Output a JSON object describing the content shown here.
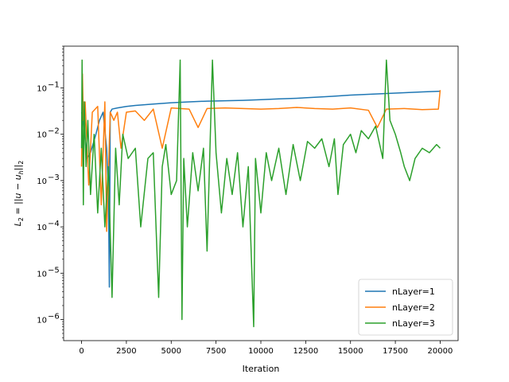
{
  "chart_data": {
    "type": "line",
    "xlabel": "Iteration",
    "ylabel_main": "L",
    "ylabel_sub": "2",
    "ylabel_rest": " = ||u − u",
    "ylabel_sub2": "h",
    "ylabel_end": "||",
    "ylabel_sub3": "2",
    "xlim": [
      -1000,
      21000
    ],
    "ylim": [
      3.5e-07,
      0.8
    ],
    "yscale": "log",
    "xticks": [
      0,
      2500,
      5000,
      7500,
      10000,
      12500,
      15000,
      17500,
      20000
    ],
    "xtick_labels": [
      "0",
      "2500",
      "5000",
      "7500",
      "10000",
      "12500",
      "15000",
      "17500",
      "20000"
    ],
    "yticks": [
      1e-06,
      1e-05,
      0.0001,
      0.001,
      0.01,
      0.1
    ],
    "ytick_labels": [
      {
        "base": "10",
        "exp": "−6"
      },
      {
        "base": "10",
        "exp": "−5"
      },
      {
        "base": "10",
        "exp": "−4"
      },
      {
        "base": "10",
        "exp": "−3"
      },
      {
        "base": "10",
        "exp": "−2"
      },
      {
        "base": "10",
        "exp": "−1"
      }
    ],
    "legend_position": "lower-right",
    "series": [
      {
        "name": "nLayer=1",
        "color": "#1f77b4",
        "x": [
          0,
          100,
          300,
          500,
          800,
          1000,
          1200,
          1400,
          1500,
          1550,
          1600,
          1700,
          2000,
          2500,
          3000,
          4000,
          5000,
          6000,
          7000,
          8000,
          9000,
          10000,
          11000,
          12000,
          13000,
          14000,
          15000,
          16000,
          17000,
          18000,
          19000,
          20000
        ],
        "y": [
          0.03,
          0.02,
          0.003,
          0.004,
          0.01,
          0.02,
          0.03,
          0.005,
          0.0005,
          5e-06,
          0.03,
          0.035,
          0.037,
          0.04,
          0.042,
          0.045,
          0.048,
          0.05,
          0.052,
          0.053,
          0.054,
          0.056,
          0.058,
          0.06,
          0.063,
          0.066,
          0.07,
          0.073,
          0.076,
          0.079,
          0.082,
          0.085
        ]
      },
      {
        "name": "nLayer=2",
        "color": "#ff7f0e",
        "x": [
          0,
          50,
          100,
          200,
          400,
          600,
          900,
          1100,
          1300,
          1400,
          1600,
          1800,
          2000,
          2200,
          2500,
          3000,
          3500,
          4000,
          4500,
          5000,
          6000,
          6500,
          7000,
          8000,
          9000,
          10000,
          11000,
          12000,
          13000,
          14000,
          15000,
          16000,
          16500,
          17000,
          18000,
          19000,
          19900,
          20000
        ],
        "y": [
          0.002,
          0.2,
          0.02,
          0.05,
          0.0008,
          0.03,
          0.04,
          0.0003,
          0.05,
          8e-05,
          0.03,
          0.02,
          0.03,
          0.005,
          0.03,
          0.032,
          0.02,
          0.035,
          0.005,
          0.037,
          0.035,
          0.014,
          0.036,
          0.037,
          0.036,
          0.035,
          0.036,
          0.038,
          0.036,
          0.035,
          0.037,
          0.033,
          0.014,
          0.035,
          0.036,
          0.034,
          0.035,
          0.09
        ]
      },
      {
        "name": "nLayer=3",
        "color": "#2ca02c",
        "x": [
          0,
          30,
          100,
          150,
          250,
          350,
          500,
          700,
          900,
          1100,
          1300,
          1500,
          1700,
          1900,
          2100,
          2300,
          2600,
          3000,
          3300,
          3700,
          4000,
          4300,
          4500,
          4700,
          5000,
          5300,
          5500,
          5600,
          5700,
          5900,
          6200,
          6500,
          6800,
          7000,
          7300,
          7500,
          7800,
          8100,
          8400,
          8700,
          9000,
          9300,
          9600,
          9700,
          10000,
          10300,
          10600,
          11000,
          11400,
          11800,
          12200,
          12600,
          13000,
          13400,
          13800,
          14100,
          14300,
          14600,
          15000,
          15300,
          15600,
          16000,
          16400,
          16800,
          17000,
          17200,
          17500,
          17800,
          18000,
          18300,
          18600,
          19000,
          19400,
          19800,
          20000
        ],
        "y": [
          0.005,
          0.4,
          0.0003,
          0.05,
          0.002,
          0.02,
          0.0005,
          0.01,
          0.0002,
          0.005,
          0.0001,
          0.002,
          3e-06,
          0.005,
          0.0003,
          0.01,
          0.003,
          0.005,
          0.0001,
          0.003,
          0.004,
          3e-06,
          0.002,
          0.006,
          0.0005,
          0.001,
          0.4,
          1e-06,
          0.003,
          0.0001,
          0.004,
          0.0006,
          0.005,
          3e-05,
          0.4,
          0.004,
          0.0002,
          0.003,
          0.0005,
          0.004,
          0.0001,
          0.002,
          7e-07,
          0.003,
          0.0002,
          0.004,
          0.001,
          0.005,
          0.0005,
          0.006,
          0.001,
          0.007,
          0.005,
          0.008,
          0.002,
          0.008,
          0.0005,
          0.006,
          0.01,
          0.004,
          0.012,
          0.008,
          0.015,
          0.003,
          0.4,
          0.02,
          0.01,
          0.004,
          0.002,
          0.001,
          0.003,
          0.005,
          0.004,
          0.006,
          0.005
        ]
      }
    ]
  }
}
